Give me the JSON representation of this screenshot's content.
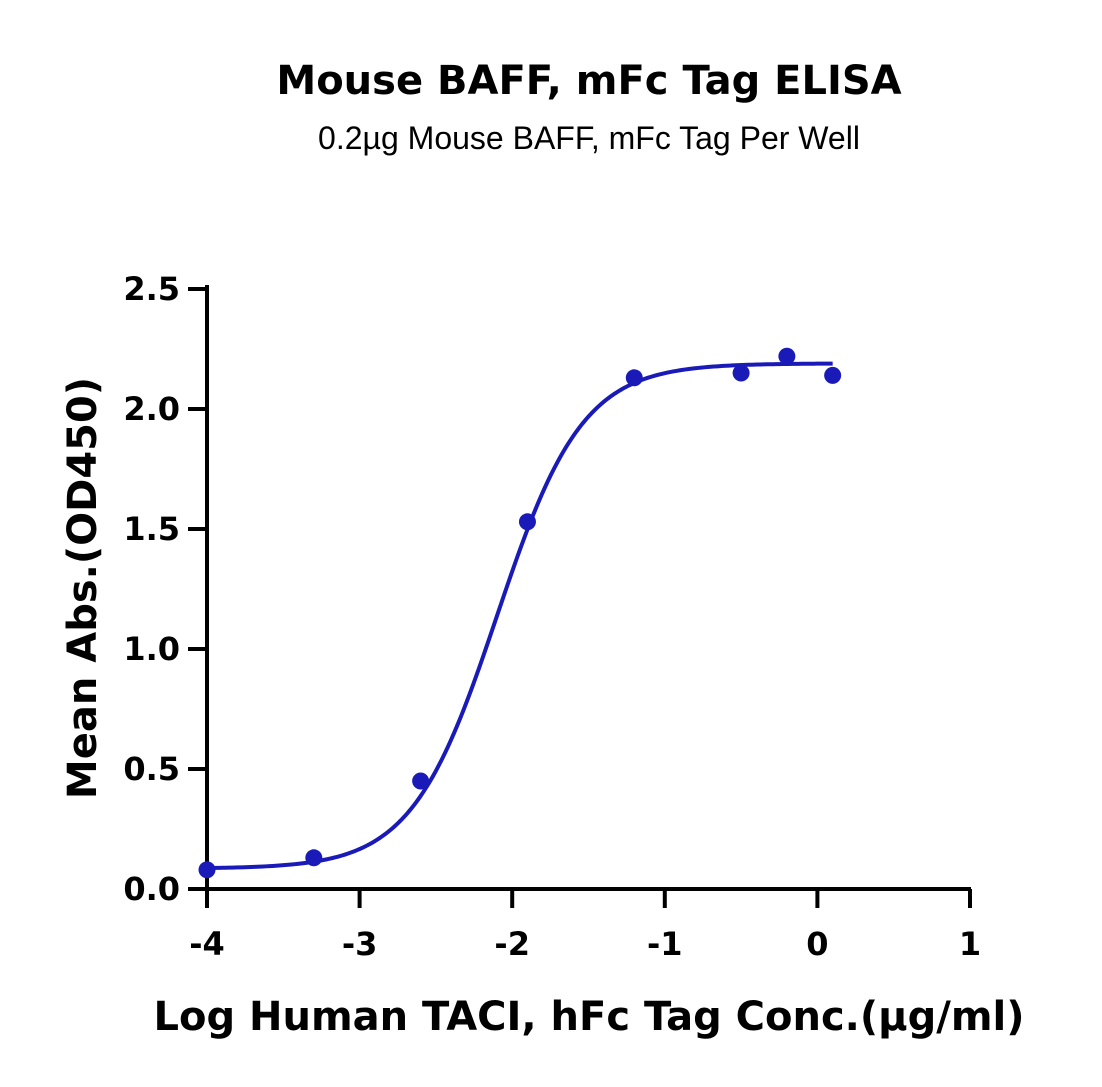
{
  "chart_data": {
    "type": "scatter",
    "title": "Mouse BAFF, mFc Tag ELISA",
    "subtitle": "0.2µg Mouse BAFF, mFc Tag Per Well",
    "xlabel": "Log Human TACI, hFc Tag Conc.(µg/ml)",
    "ylabel": "Mean Abs.(OD450)",
    "xlim": [
      -4,
      1
    ],
    "ylim": [
      0,
      2.5
    ],
    "x_ticks": [
      "-4",
      "-3",
      "-2",
      "-1",
      "0",
      "1"
    ],
    "y_ticks": [
      "0.0",
      "0.5",
      "1.0",
      "1.5",
      "2.0",
      "2.5"
    ],
    "grid": false,
    "series_color": "#1a1ab8",
    "series": [
      {
        "x": [
          -4.0,
          -3.3,
          -2.6,
          -1.9,
          -1.2,
          -0.5,
          -0.2,
          0.1
        ],
        "y": [
          0.08,
          0.13,
          0.45,
          1.53,
          2.13,
          2.15,
          2.22,
          2.14
        ]
      }
    ],
    "fit_curve": {
      "type": "4PL",
      "bottom": 0.085,
      "top": 2.19,
      "log_ec50": -2.1,
      "hill": 1.55,
      "x_range": [
        -4.0,
        0.1
      ]
    }
  }
}
